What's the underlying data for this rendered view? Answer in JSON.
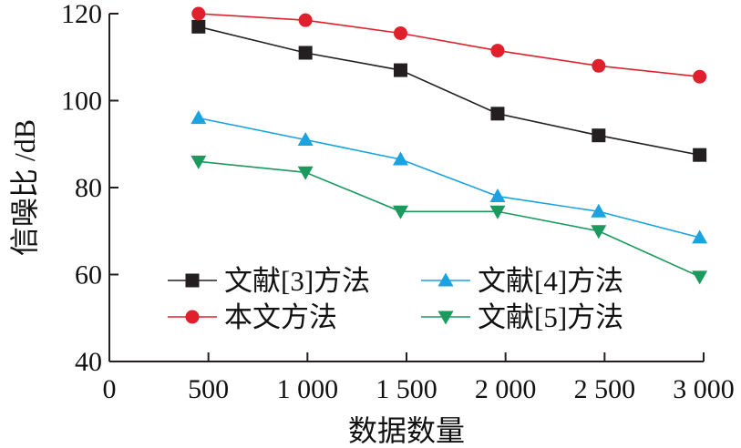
{
  "chart_data": {
    "type": "line",
    "xlabel": "数据数量",
    "ylabel": "信噪比 /dB",
    "x": [
      450,
      990,
      1470,
      1960,
      2470,
      2980
    ],
    "xlim": [
      0,
      3000
    ],
    "ylim": [
      40,
      120
    ],
    "xticks": [
      0,
      500,
      1000,
      1500,
      2000,
      2500,
      3000
    ],
    "xtick_labels": [
      "0",
      "500",
      "1 000",
      "1 500",
      "2 000",
      "2 500",
      "3 000"
    ],
    "yticks": [
      40,
      60,
      80,
      100,
      120
    ],
    "ytick_labels": [
      "40",
      "60",
      "80",
      "100",
      "120"
    ],
    "grid": false,
    "legend_position": "bottom-center",
    "series": [
      {
        "name": "文献[3]方法",
        "marker": "square",
        "color": "#231f20",
        "values": [
          117,
          111,
          107,
          97,
          92,
          87.5
        ]
      },
      {
        "name": "本文方法",
        "marker": "circle",
        "color": "#e0202c",
        "values": [
          120,
          118.5,
          115.5,
          111.5,
          108,
          105.5
        ]
      },
      {
        "name": "文献[4]方法",
        "marker": "triangle-up",
        "color": "#1aa3e0",
        "values": [
          96,
          91,
          86.5,
          78,
          74.5,
          68.5
        ]
      },
      {
        "name": "文献[5]方法",
        "marker": "triangle-down",
        "color": "#1a9a5c",
        "values": [
          86,
          83.5,
          74.5,
          74.5,
          70,
          59.5
        ]
      }
    ]
  }
}
